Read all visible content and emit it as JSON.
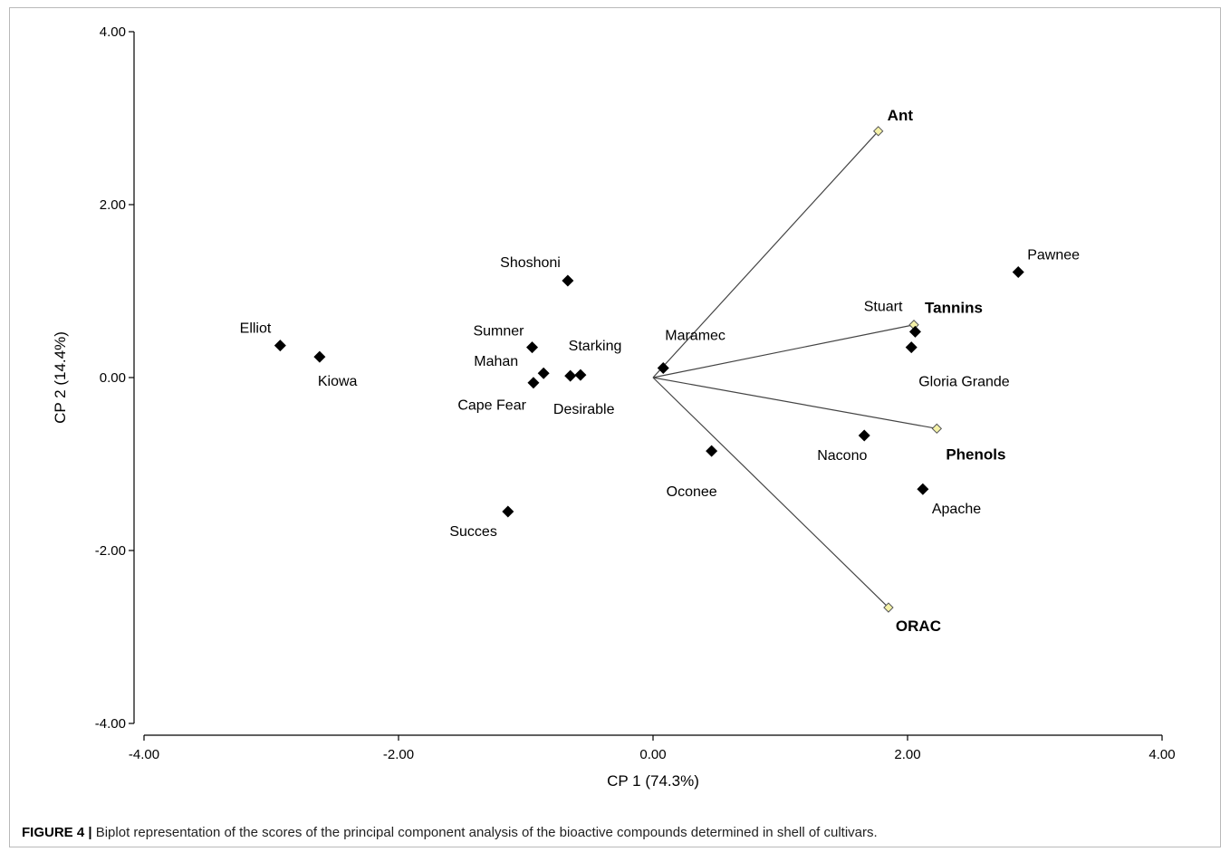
{
  "chart_data": {
    "type": "scatter",
    "subtype": "biplot",
    "xlabel": "CP 1 (74.3%)",
    "ylabel": "CP 2 (14.4%)",
    "xlim": [
      -4,
      4
    ],
    "ylim": [
      -4,
      4
    ],
    "x_ticks": [
      "-4.00",
      "-2.00",
      "0.00",
      "2.00",
      "4.00"
    ],
    "y_ticks": [
      "4.00",
      "2.00",
      "0.00",
      "-2.00",
      "-4.00"
    ],
    "x_tick_values": [
      -4,
      -2,
      0,
      2,
      4
    ],
    "y_tick_values": [
      4,
      2,
      0,
      -2,
      -4
    ],
    "grid": false,
    "points": [
      {
        "label": "Elliot",
        "x": -2.93,
        "y": 0.37,
        "label_pos": "upper-left"
      },
      {
        "label": "Kiowa",
        "x": -2.62,
        "y": 0.24,
        "label_pos": "lower-right"
      },
      {
        "label": "Shoshoni",
        "x": -0.67,
        "y": 1.12,
        "label_pos": "upper-left"
      },
      {
        "label": "Sumner",
        "x": -0.95,
        "y": 0.35,
        "label_pos": "upper-left"
      },
      {
        "label": "Mahan",
        "x": -0.86,
        "y": 0.05,
        "label_pos": "left"
      },
      {
        "label": "Cape Fear",
        "x": -0.94,
        "y": -0.06,
        "label_pos": "lower-left"
      },
      {
        "label": "Starking",
        "x": -0.65,
        "y": 0.02,
        "label_pos": "upper-right"
      },
      {
        "label": "Desirable",
        "x": -0.57,
        "y": 0.03,
        "label_pos": "below"
      },
      {
        "label": "Succes",
        "x": -1.14,
        "y": -1.55,
        "label_pos": "lower-left"
      },
      {
        "label": "Maramec",
        "x": 0.08,
        "y": 0.11,
        "label_pos": "upper-right"
      },
      {
        "label": "Oconee",
        "x": 0.46,
        "y": -0.85,
        "label_pos": "below"
      },
      {
        "label": "Nacono",
        "x": 1.66,
        "y": -0.67,
        "label_pos": "lower-left"
      },
      {
        "label": "Stuart",
        "x": 2.06,
        "y": 0.53,
        "label_pos": "upper-left"
      },
      {
        "label": "Gloria Grande",
        "x": 2.03,
        "y": 0.35,
        "label_pos": "lower-right"
      },
      {
        "label": "Apache",
        "x": 2.12,
        "y": -1.29,
        "label_pos": "lower-right"
      },
      {
        "label": "Pawnee",
        "x": 2.87,
        "y": 1.22,
        "label_pos": "upper-right"
      }
    ],
    "vectors": [
      {
        "label": "Ant",
        "x": 1.77,
        "y": 2.85
      },
      {
        "label": "Tannins",
        "x": 2.05,
        "y": 0.61
      },
      {
        "label": "Phenols",
        "x": 2.23,
        "y": -0.59
      },
      {
        "label": "ORAC",
        "x": 1.85,
        "y": -2.66
      }
    ],
    "colors": {
      "point_fill": "#000000",
      "vector_marker_fill": "#f5f2a8",
      "vector_line": "#444444",
      "axis": "#000000"
    }
  },
  "caption": {
    "prefix": "FIGURE 4 |",
    "text": " Biplot representation of the scores of the principal component analysis of the bioactive compounds determined in shell of cultivars."
  }
}
